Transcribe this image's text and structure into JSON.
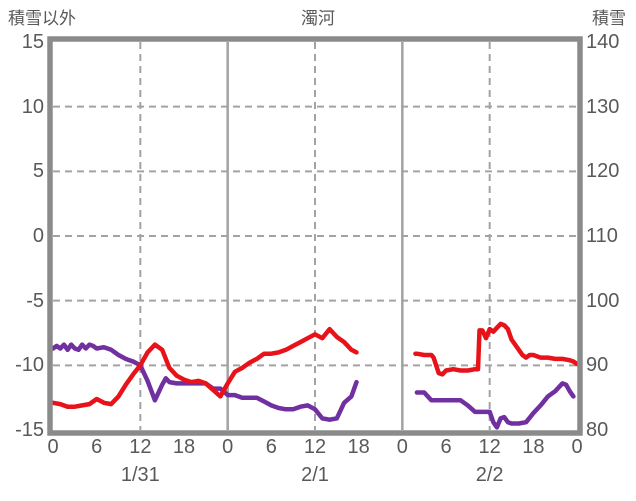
{
  "header": {
    "left_axis_title": "積雪以外",
    "chart_title": "濁河",
    "right_axis_title": "積雪"
  },
  "left_axis": {
    "tick_labels": [
      "15",
      "10",
      "5",
      "0",
      "-5",
      "-10",
      "-15"
    ],
    "min": -15,
    "max": 15,
    "step": 5
  },
  "right_axis": {
    "tick_labels": [
      "140",
      "130",
      "120",
      "110",
      "100",
      "90",
      "80"
    ],
    "min": 80,
    "max": 140,
    "step": 10
  },
  "x_axis": {
    "hour_labels": [
      "0",
      "6",
      "12",
      "18",
      "0",
      "6",
      "12",
      "18",
      "0",
      "6",
      "12",
      "18",
      "0"
    ],
    "hour_values": [
      0,
      6,
      12,
      18,
      24,
      30,
      36,
      42,
      48,
      54,
      60,
      66,
      72
    ],
    "date_labels": [
      "1/31",
      "2/1",
      "2/2"
    ],
    "date_hour_positions": [
      12,
      36,
      60
    ]
  },
  "colors": {
    "red_line": "#e8131a",
    "purple_line": "#7030a0",
    "grid": "#a3a3a3",
    "frame": "#8b8b8b",
    "text": "#595959"
  },
  "chart_data": {
    "type": "line",
    "title": "濁河",
    "x_unit": "hours from 1/31 00:00",
    "xlim": [
      0,
      72
    ],
    "left_ylim": [
      -15,
      15
    ],
    "right_ylim": [
      80,
      140
    ],
    "grid": {
      "horizontal_dashed_left_values": [
        10,
        5,
        0,
        -5,
        -10
      ],
      "vertical_solid_hours": [
        24,
        48
      ],
      "vertical_dashed_hours": [
        12,
        36,
        60
      ]
    },
    "legend": "none",
    "series": [
      {
        "name": "purple-right-axis-series",
        "axis": "right",
        "color_key": "purple_line",
        "segments": [
          [
            [
              0,
              92.6
            ],
            [
              0.5,
              93.0
            ],
            [
              1,
              92.6
            ],
            [
              1.5,
              93.2
            ],
            [
              2,
              92.4
            ],
            [
              2.5,
              93.2
            ],
            [
              3,
              92.6
            ],
            [
              3.5,
              92.4
            ],
            [
              4,
              93.2
            ],
            [
              4.5,
              92.6
            ],
            [
              5,
              93.2
            ],
            [
              5.5,
              93.0
            ],
            [
              6,
              92.6
            ],
            [
              7,
              92.8
            ],
            [
              8,
              92.4
            ],
            [
              9,
              91.6
            ],
            [
              10,
              91.0
            ],
            [
              11,
              90.6
            ],
            [
              12,
              90.0
            ],
            [
              13,
              87.6
            ],
            [
              14,
              84.6
            ],
            [
              15,
              87.0
            ],
            [
              15.5,
              88.0
            ],
            [
              16,
              87.4
            ],
            [
              17,
              87.2
            ],
            [
              18,
              87.2
            ],
            [
              19,
              87.2
            ],
            [
              20,
              87.2
            ],
            [
              21,
              87.2
            ],
            [
              22,
              86.4
            ],
            [
              23,
              86.4
            ],
            [
              24,
              85.4
            ],
            [
              25,
              85.4
            ],
            [
              26,
              85.0
            ],
            [
              27,
              85.0
            ],
            [
              28,
              85.0
            ],
            [
              29,
              84.4
            ],
            [
              30,
              83.8
            ],
            [
              31,
              83.4
            ],
            [
              32,
              83.2
            ],
            [
              33,
              83.2
            ],
            [
              34,
              83.6
            ],
            [
              35,
              83.8
            ],
            [
              36,
              83.2
            ],
            [
              37,
              81.8
            ],
            [
              38,
              81.6
            ],
            [
              39,
              81.8
            ],
            [
              40,
              84.2
            ],
            [
              41,
              85.2
            ],
            [
              41.7,
              87.4
            ]
          ],
          [
            [
              50,
              85.8
            ],
            [
              51,
              85.8
            ],
            [
              52,
              84.6
            ],
            [
              53,
              84.6
            ],
            [
              54,
              84.6
            ],
            [
              55,
              84.6
            ],
            [
              56,
              84.6
            ],
            [
              57,
              83.8
            ],
            [
              58,
              82.8
            ],
            [
              59,
              82.8
            ],
            [
              60,
              82.8
            ],
            [
              60.5,
              81.2
            ],
            [
              61,
              80.4
            ],
            [
              61.5,
              81.8
            ],
            [
              62,
              82.0
            ],
            [
              62.5,
              81.2
            ],
            [
              63,
              81.0
            ],
            [
              64,
              81.0
            ],
            [
              65,
              81.2
            ],
            [
              66,
              82.6
            ],
            [
              67,
              83.8
            ],
            [
              68,
              85.2
            ],
            [
              69,
              86.0
            ],
            [
              70,
              87.2
            ],
            [
              70.5,
              87.0
            ],
            [
              71,
              86.0
            ],
            [
              71.5,
              85.2
            ]
          ]
        ]
      },
      {
        "name": "red-left-axis-series",
        "axis": "left",
        "color_key": "red_line",
        "segments": [
          [
            [
              0,
              -12.9
            ],
            [
              1,
              -13.0
            ],
            [
              2,
              -13.2
            ],
            [
              3,
              -13.2
            ],
            [
              4,
              -13.1
            ],
            [
              5,
              -13.0
            ],
            [
              6,
              -12.6
            ],
            [
              7,
              -12.9
            ],
            [
              8,
              -13.0
            ],
            [
              9,
              -12.4
            ],
            [
              10,
              -11.5
            ],
            [
              11,
              -10.7
            ],
            [
              12,
              -10.0
            ],
            [
              13,
              -9.0
            ],
            [
              14,
              -8.4
            ],
            [
              15,
              -8.8
            ],
            [
              15.5,
              -9.5
            ],
            [
              16,
              -10.2
            ],
            [
              17,
              -10.8
            ],
            [
              18,
              -11.1
            ],
            [
              19,
              -11.3
            ],
            [
              20,
              -11.2
            ],
            [
              21,
              -11.4
            ],
            [
              22,
              -11.9
            ],
            [
              23,
              -12.4
            ],
            [
              24,
              -11.4
            ],
            [
              25,
              -10.5
            ],
            [
              26,
              -10.2
            ],
            [
              27,
              -9.8
            ],
            [
              28,
              -9.5
            ],
            [
              29,
              -9.1
            ],
            [
              30,
              -9.1
            ],
            [
              31,
              -9.0
            ],
            [
              32,
              -8.8
            ],
            [
              33,
              -8.5
            ],
            [
              34,
              -8.2
            ],
            [
              35,
              -7.9
            ],
            [
              36,
              -7.6
            ],
            [
              37,
              -7.9
            ],
            [
              38,
              -7.2
            ],
            [
              39,
              -7.8
            ],
            [
              40,
              -8.2
            ],
            [
              41,
              -8.8
            ],
            [
              41.7,
              -9.0
            ]
          ],
          [
            [
              49.8,
              -9.1
            ],
            [
              50,
              -9.1
            ],
            [
              51,
              -9.2
            ],
            [
              52,
              -9.2
            ],
            [
              52.3,
              -9.4
            ],
            [
              53,
              -10.6
            ],
            [
              53.5,
              -10.7
            ],
            [
              54,
              -10.4
            ],
            [
              55,
              -10.3
            ],
            [
              56,
              -10.4
            ],
            [
              57,
              -10.4
            ],
            [
              58,
              -10.3
            ],
            [
              58.4,
              -10.3
            ],
            [
              58.6,
              -7.3
            ],
            [
              59,
              -7.3
            ],
            [
              59.5,
              -7.9
            ],
            [
              60,
              -7.2
            ],
            [
              60.5,
              -7.4
            ],
            [
              61,
              -7.1
            ],
            [
              61.5,
              -6.8
            ],
            [
              62,
              -6.9
            ],
            [
              62.5,
              -7.2
            ],
            [
              63,
              -8.0
            ],
            [
              64,
              -8.8
            ],
            [
              64.5,
              -9.2
            ],
            [
              65,
              -9.4
            ],
            [
              65.5,
              -9.2
            ],
            [
              66,
              -9.2
            ],
            [
              67,
              -9.4
            ],
            [
              68,
              -9.4
            ],
            [
              69,
              -9.5
            ],
            [
              70,
              -9.5
            ],
            [
              71,
              -9.6
            ],
            [
              71.5,
              -9.7
            ],
            [
              72,
              -9.9
            ]
          ]
        ]
      }
    ]
  }
}
